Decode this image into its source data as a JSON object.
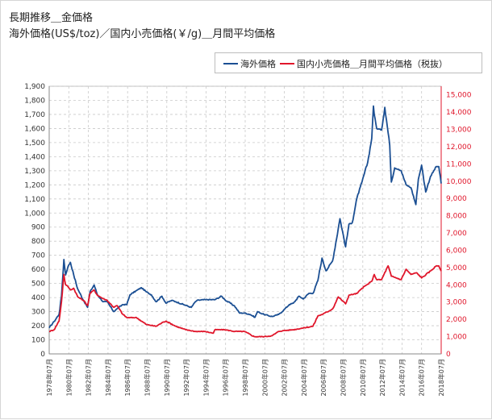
{
  "title_line1": "長期推移＿金価格",
  "title_line2": "海外価格(US$/toz)／国内小売価格(￥/g)＿月間平均価格",
  "colors": {
    "overseas": "#1b4f93",
    "domestic": "#e0162b",
    "grid": "#c9c9c9"
  },
  "chart_data": {
    "type": "line",
    "title": "長期推移＿金価格",
    "subtitle": "海外価格(US$/toz)／国内小売価格(￥/g)＿月間平均価格",
    "legend_position": "top-right",
    "grid": true,
    "y_left": {
      "lim": [
        0,
        1900
      ],
      "ticks": [
        "0",
        "100",
        "200",
        "300",
        "400",
        "500",
        "600",
        "700",
        "800",
        "900",
        "1,000",
        "1,100",
        "1,200",
        "1,300",
        "1,400",
        "1,500",
        "1,600",
        "1,700",
        "1,800",
        "1,900"
      ]
    },
    "y_right": {
      "lim": [
        0,
        15500
      ],
      "ticks": [
        "0",
        "1,000",
        "2,000",
        "3,000",
        "4,000",
        "5,000",
        "6,000",
        "7,000",
        "8,000",
        "9,000",
        "10,000",
        "11,000",
        "12,000",
        "13,000",
        "14,000",
        "15,000"
      ]
    },
    "x_labels": [
      "1978年07月",
      "1980年07月",
      "1982年07月",
      "1984年07月",
      "1986年07月",
      "1988年07月",
      "1990年07月",
      "1992年07月",
      "1994年07月",
      "1996年07月",
      "1998年07月",
      "2000年07月",
      "2002年07月",
      "2004年07月",
      "2006年07月",
      "2008年07月",
      "2010年07月",
      "2012年07月",
      "2014年07月",
      "2016年07月",
      "2018年07月"
    ],
    "x_range": [
      "1978年07月",
      "2018年07月"
    ],
    "series": [
      {
        "name": "海外価格",
        "axis": "left",
        "x": [
          "1978-07",
          "1979-01",
          "1979-07",
          "1979-10",
          "1980-01",
          "1980-03",
          "1980-06",
          "1980-09",
          "1981-01",
          "1981-06",
          "1982-01",
          "1982-06",
          "1982-09",
          "1983-02",
          "1983-06",
          "1984-01",
          "1984-06",
          "1985-02",
          "1985-06",
          "1986-01",
          "1986-06",
          "1986-10",
          "1987-06",
          "1987-12",
          "1988-06",
          "1988-12",
          "1989-06",
          "1990-01",
          "1990-06",
          "1991-01",
          "1991-06",
          "1992-06",
          "1993-01",
          "1993-06",
          "1993-08",
          "1994-06",
          "1995-06",
          "1996-02",
          "1996-06",
          "1997-06",
          "1997-12",
          "1998-06",
          "1999-01",
          "1999-07",
          "1999-10",
          "2000-06",
          "2001-04",
          "2001-12",
          "2002-06",
          "2003-01",
          "2003-06",
          "2004-01",
          "2004-06",
          "2005-01",
          "2005-06",
          "2005-12",
          "2006-05",
          "2006-10",
          "2007-06",
          "2008-01",
          "2008-03",
          "2008-10",
          "2009-02",
          "2009-06",
          "2009-12",
          "2010-06",
          "2011-01",
          "2011-06",
          "2011-08",
          "2011-09",
          "2011-12",
          "2012-06",
          "2012-10",
          "2013-04",
          "2013-06",
          "2013-10",
          "2014-03",
          "2014-06",
          "2014-12",
          "2015-06",
          "2015-12",
          "2016-03",
          "2016-07",
          "2016-12",
          "2017-06",
          "2018-01",
          "2018-04",
          "2018-07"
        ],
        "values": [
          185,
          230,
          280,
          410,
          670,
          560,
          620,
          650,
          560,
          460,
          380,
          330,
          440,
          490,
          420,
          370,
          370,
          300,
          320,
          350,
          350,
          420,
          450,
          470,
          440,
          420,
          370,
          410,
          360,
          380,
          370,
          345,
          330,
          370,
          380,
          385,
          385,
          410,
          385,
          340,
          290,
          290,
          280,
          260,
          300,
          280,
          265,
          280,
          310,
          350,
          360,
          410,
          390,
          430,
          430,
          520,
          680,
          590,
          660,
          890,
          960,
          760,
          920,
          930,
          1110,
          1220,
          1360,
          1530,
          1760,
          1700,
          1600,
          1590,
          1750,
          1480,
          1220,
          1320,
          1310,
          1300,
          1200,
          1180,
          1060,
          1240,
          1340,
          1150,
          1260,
          1330,
          1330,
          1210
        ]
      },
      {
        "name": "国内小売価格＿月間平均価格（税抜）",
        "axis": "right",
        "x": [
          "1978-07",
          "1979-01",
          "1979-07",
          "1979-10",
          "1980-01",
          "1980-03",
          "1980-06",
          "1980-09",
          "1981-01",
          "1981-06",
          "1982-01",
          "1982-06",
          "1982-09",
          "1983-02",
          "1983-06",
          "1984-01",
          "1984-06",
          "1985-02",
          "1985-06",
          "1986-01",
          "1986-06",
          "1987-06",
          "1988-06",
          "1989-06",
          "1990-01",
          "1990-06",
          "1991-06",
          "1992-06",
          "1993-06",
          "1994-06",
          "1995-04",
          "1995-06",
          "1996-06",
          "1997-06",
          "1998-06",
          "1999-06",
          "2000-06",
          "2001-04",
          "2001-12",
          "2002-06",
          "2003-06",
          "2004-06",
          "2005-06",
          "2005-12",
          "2006-06",
          "2007-06",
          "2008-01",
          "2008-10",
          "2009-02",
          "2009-12",
          "2010-06",
          "2011-06",
          "2011-09",
          "2011-12",
          "2012-06",
          "2013-02",
          "2013-06",
          "2014-06",
          "2014-12",
          "2015-06",
          "2016-01",
          "2016-07",
          "2017-06",
          "2018-01",
          "2018-04",
          "2018-07"
        ],
        "values": [
          1300,
          1400,
          1900,
          3000,
          4600,
          4000,
          3900,
          3700,
          3800,
          3300,
          3100,
          2800,
          3500,
          3700,
          3400,
          3200,
          3100,
          2700,
          2800,
          2300,
          2100,
          2100,
          1700,
          1600,
          1800,
          1900,
          1600,
          1400,
          1300,
          1300,
          1200,
          1400,
          1400,
          1300,
          1300,
          1000,
          1000,
          1050,
          1300,
          1350,
          1400,
          1500,
          1600,
          2200,
          2300,
          2600,
          3300,
          2900,
          3400,
          3500,
          3800,
          4200,
          4600,
          4300,
          4300,
          5100,
          4500,
          4300,
          4900,
          4600,
          4700,
          4400,
          4800,
          5100,
          5100,
          4800
        ]
      }
    ]
  }
}
